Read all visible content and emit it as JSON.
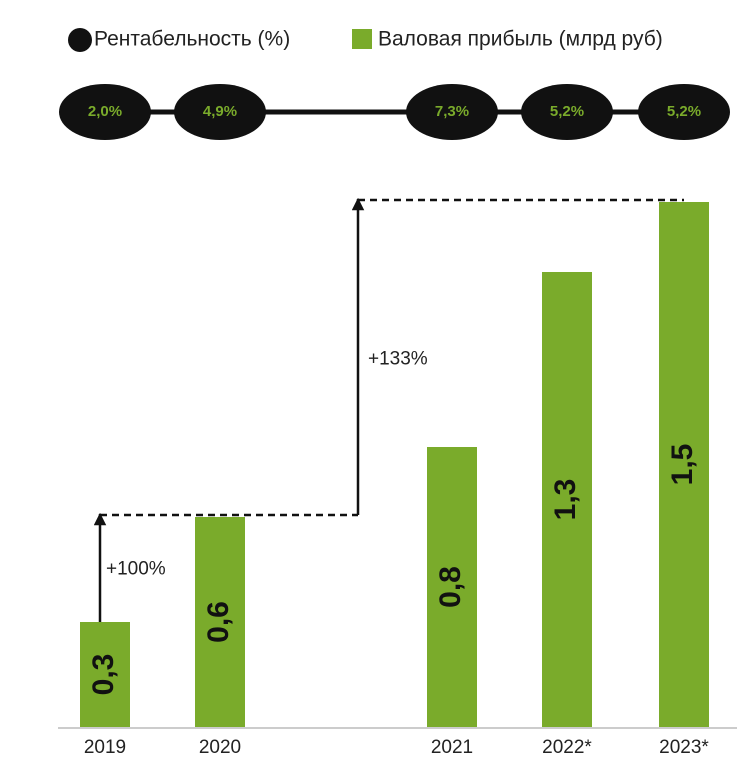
{
  "chart_data": {
    "type": "bar",
    "categories": [
      "2019",
      "2020",
      "2021",
      "2022*",
      "2023*"
    ],
    "series": [
      {
        "name": "Валовая прибыль (млрд руб)",
        "color": "#7aab2b",
        "values": [
          0.3,
          0.6,
          0.8,
          1.3,
          1.5
        ],
        "value_labels": [
          "0,3",
          "0,6",
          "0,8",
          "1,3",
          "1,5"
        ]
      },
      {
        "name": "Рентабельность (%)",
        "type": "line",
        "color": "#111111",
        "label_color": "#7aab2b",
        "values": [
          2.0,
          4.9,
          7.3,
          5.2,
          5.2
        ],
        "value_labels": [
          "2,0%",
          "4,9%",
          "7,3%",
          "5,2%",
          "5,2%"
        ]
      }
    ],
    "ylim": [
      0,
      1.6
    ],
    "annotations": [
      "+100%",
      "+133%"
    ]
  }
}
